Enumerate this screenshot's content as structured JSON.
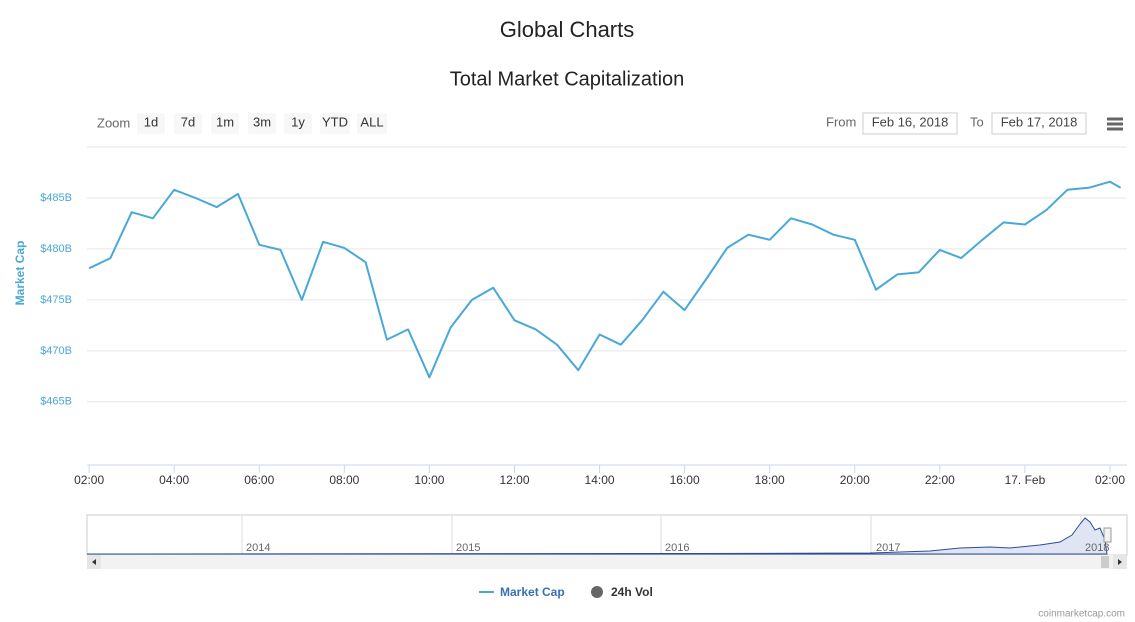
{
  "page_title": "Global Charts",
  "chart_data": {
    "type": "line",
    "title": "Total Market Capitalization",
    "ylabel": "Market Cap",
    "x": [
      2,
      2.5,
      3,
      3.5,
      4,
      4.5,
      5,
      5.5,
      6,
      6.5,
      7,
      7.5,
      8,
      8.5,
      9,
      9.5,
      10,
      10.5,
      11,
      11.5,
      12,
      12.5,
      13,
      13.5,
      14,
      14.5,
      15,
      15.5,
      16,
      16.5,
      17,
      17.5,
      18,
      18.5,
      19,
      19.5,
      20,
      20.5,
      21,
      21.5,
      22,
      22.5,
      23,
      23.5,
      24,
      24.5,
      25,
      25.5,
      26,
      26.25
    ],
    "series": [
      {
        "name": "Market Cap",
        "color": "#4aa8d8",
        "values": [
          478.1,
          479.1,
          483.6,
          483.0,
          485.8,
          485.0,
          484.1,
          485.4,
          480.4,
          479.9,
          475.0,
          480.7,
          480.1,
          478.7,
          471.1,
          472.1,
          467.4,
          472.3,
          475.0,
          476.2,
          473.0,
          472.1,
          470.6,
          468.1,
          471.6,
          470.6,
          473.0,
          475.8,
          474.0,
          477.0,
          480.1,
          481.4,
          480.9,
          483.0,
          482.4,
          481.4,
          480.9,
          476.0,
          477.5,
          477.7,
          479.9,
          479.1,
          480.9,
          482.6,
          482.4,
          483.8,
          485.8,
          486.0,
          486.6,
          486.0
        ]
      }
    ],
    "hidden_series": [
      {
        "name": "24h Vol",
        "color": "#666666"
      }
    ],
    "xlim": [
      1.95,
      26.4
    ],
    "xticks": [
      {
        "value": 2,
        "label": "02:00"
      },
      {
        "value": 4,
        "label": "04:00"
      },
      {
        "value": 6,
        "label": "06:00"
      },
      {
        "value": 8,
        "label": "08:00"
      },
      {
        "value": 10,
        "label": "10:00"
      },
      {
        "value": 12,
        "label": "12:00"
      },
      {
        "value": 14,
        "label": "14:00"
      },
      {
        "value": 16,
        "label": "16:00"
      },
      {
        "value": 18,
        "label": "18:00"
      },
      {
        "value": 20,
        "label": "20:00"
      },
      {
        "value": 22,
        "label": "22:00"
      },
      {
        "value": 24,
        "label": "17. Feb"
      },
      {
        "value": 26,
        "label": "02:00"
      }
    ],
    "ylim": [
      458.8,
      490
    ],
    "yticks": [
      {
        "value": 465,
        "label": "$465B"
      },
      {
        "value": 470,
        "label": "$470B"
      },
      {
        "value": 475,
        "label": "$475B"
      },
      {
        "value": 480,
        "label": "$480B"
      },
      {
        "value": 485,
        "label": "$485B"
      }
    ],
    "grid": true
  },
  "zoom": {
    "label": "Zoom",
    "buttons": [
      "1d",
      "7d",
      "1m",
      "3m",
      "1y",
      "YTD",
      "ALL"
    ]
  },
  "range": {
    "from_label": "From",
    "from": "Feb 16, 2018",
    "to_label": "To",
    "to": "Feb 17, 2018"
  },
  "navigator": {
    "years": [
      "2014",
      "2015",
      "2016",
      "2017",
      "2018"
    ]
  },
  "credit": "coinmarketcap.com"
}
